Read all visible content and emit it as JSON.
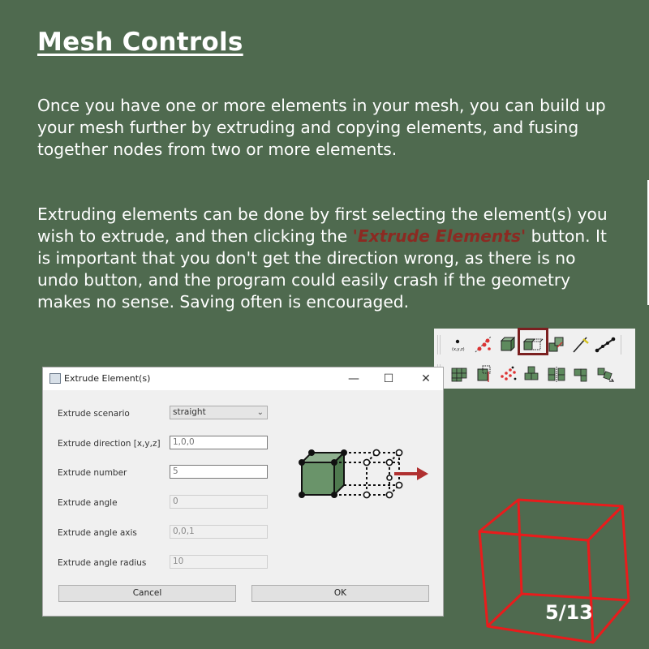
{
  "slide": {
    "title": "Mesh Controls",
    "paragraph1": "Once you have one or more elements in your mesh, you can build up your mesh further by extruding and copying elements, and fusing together nodes from two or more elements.",
    "paragraph2_before": "Extruding elements can be done by first selecting the element(s) you wish to extrude, and then clicking the ",
    "paragraph2_highlight": "'Extrude Elements'",
    "paragraph2_after": " button. It is important that you don't get the direction wrong, as there is no undo button, and the program could easily crash if the geometry makes no sense. Saving often is encouraged.",
    "page_number": "5/13",
    "highlight_color": "#8b2a22",
    "background_color": "#4f6a4f"
  },
  "toolbar": {
    "row1_icons": [
      "node-icon",
      "split-icon",
      "element-icon",
      "extrude-elements-icon",
      "copy-elements-icon",
      "line-icon",
      "edge-icon"
    ],
    "row2_icons": [
      "grid-icon",
      "mirror-icon",
      "nodes-icon",
      "fuse-icon",
      "align-icon",
      "step-icon",
      "rotate-icon"
    ],
    "node_icon_caption": "(x,y,z)",
    "active_icon": "extrude-elements-icon"
  },
  "dialog": {
    "title": "Extrude Element(s)",
    "fields": [
      {
        "label": "Extrude scenario",
        "value": "straight",
        "kind": "select",
        "enabled": true
      },
      {
        "label": "Extrude direction [x,y,z]",
        "value": "1,0,0",
        "kind": "input",
        "enabled": true
      },
      {
        "label": "Extrude number",
        "value": "5",
        "kind": "input",
        "enabled": true
      },
      {
        "label": "Extrude angle",
        "value": "0",
        "kind": "input",
        "enabled": false
      },
      {
        "label": "Extrude angle axis",
        "value": "0,0,1",
        "kind": "input",
        "enabled": false
      },
      {
        "label": "Extrude angle radius",
        "value": "10",
        "kind": "input",
        "enabled": false
      }
    ],
    "cancel_label": "Cancel",
    "ok_label": "OK",
    "minimize_glyph": "—",
    "maximize_glyph": "☐",
    "close_glyph": "✕"
  }
}
